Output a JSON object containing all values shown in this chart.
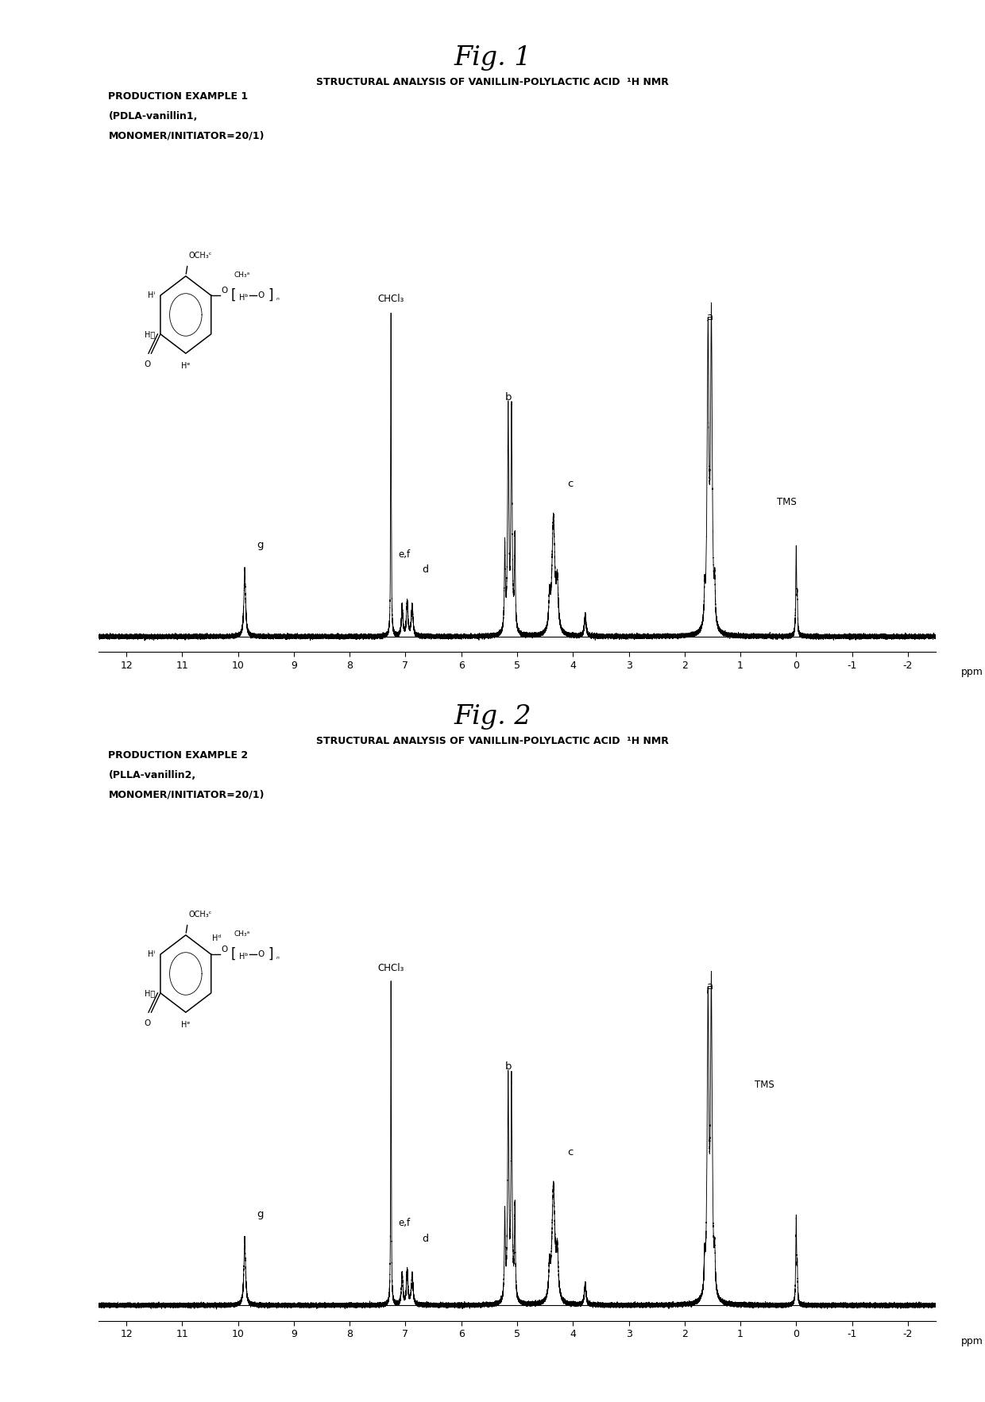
{
  "fig1_title": "Fig. 1",
  "fig2_title": "Fig. 2",
  "subtitle": "STRUCTURAL ANALYSIS OF VANILLIN-POLYLACTIC ACID  ¹H NMR",
  "example1_line1": "PRODUCTION EXAMPLE 1",
  "example1_line2": "(PDLA-vanillin1,",
  "example1_line3": "MONOMER/INITIATOR=20/1)",
  "example2_line1": "PRODUCTION EXAMPLE 2",
  "example2_line2": "(PLLA-vanillin2,",
  "example2_line3": "MONOMER/INITIATOR=20/1)",
  "xmin": -2,
  "xmax": 12,
  "xlabel": "ppm",
  "bg_color": "#ffffff",
  "line_color": "#000000"
}
